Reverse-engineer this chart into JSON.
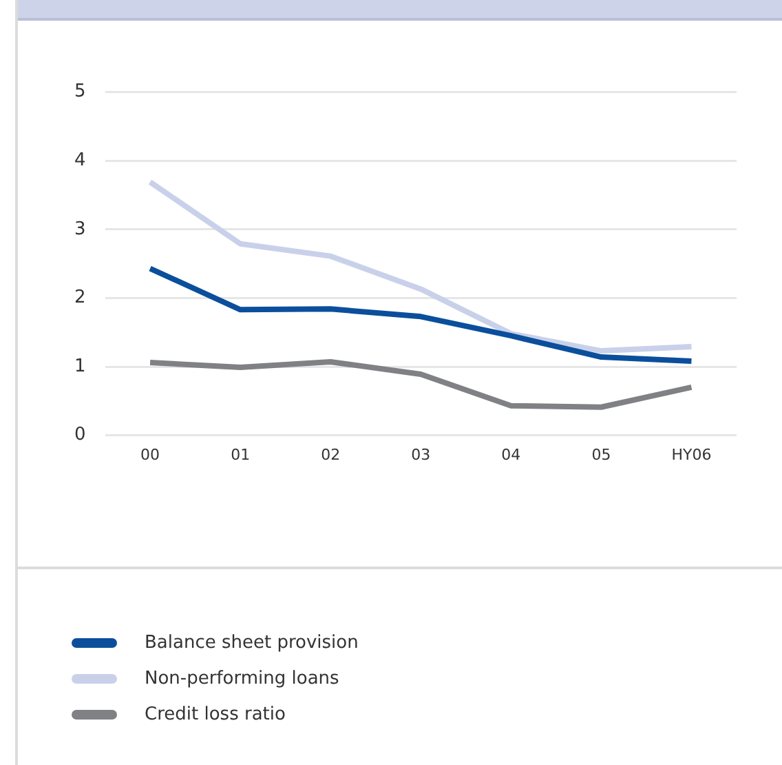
{
  "chart_data": {
    "type": "line",
    "categories": [
      "00",
      "01",
      "02",
      "03",
      "04",
      "05",
      "HY06"
    ],
    "series": [
      {
        "name": "Balance sheet provision",
        "color": "#0b4f9c",
        "values": [
          2.43,
          1.83,
          1.84,
          1.73,
          1.45,
          1.14,
          1.08
        ]
      },
      {
        "name": "Non-performing loans",
        "color": "#c9d1ea",
        "values": [
          3.69,
          2.79,
          2.61,
          2.13,
          1.48,
          1.23,
          1.29
        ]
      },
      {
        "name": "Credit loss ratio",
        "color": "#808184",
        "values": [
          1.06,
          0.99,
          1.07,
          0.89,
          0.43,
          0.41,
          0.7
        ]
      }
    ],
    "ylim": [
      0,
      5
    ],
    "yticks": [
      0,
      1,
      2,
      3,
      4,
      5
    ],
    "grid": "y",
    "legend": "bottom",
    "marker": "none",
    "line_style": "solid"
  }
}
